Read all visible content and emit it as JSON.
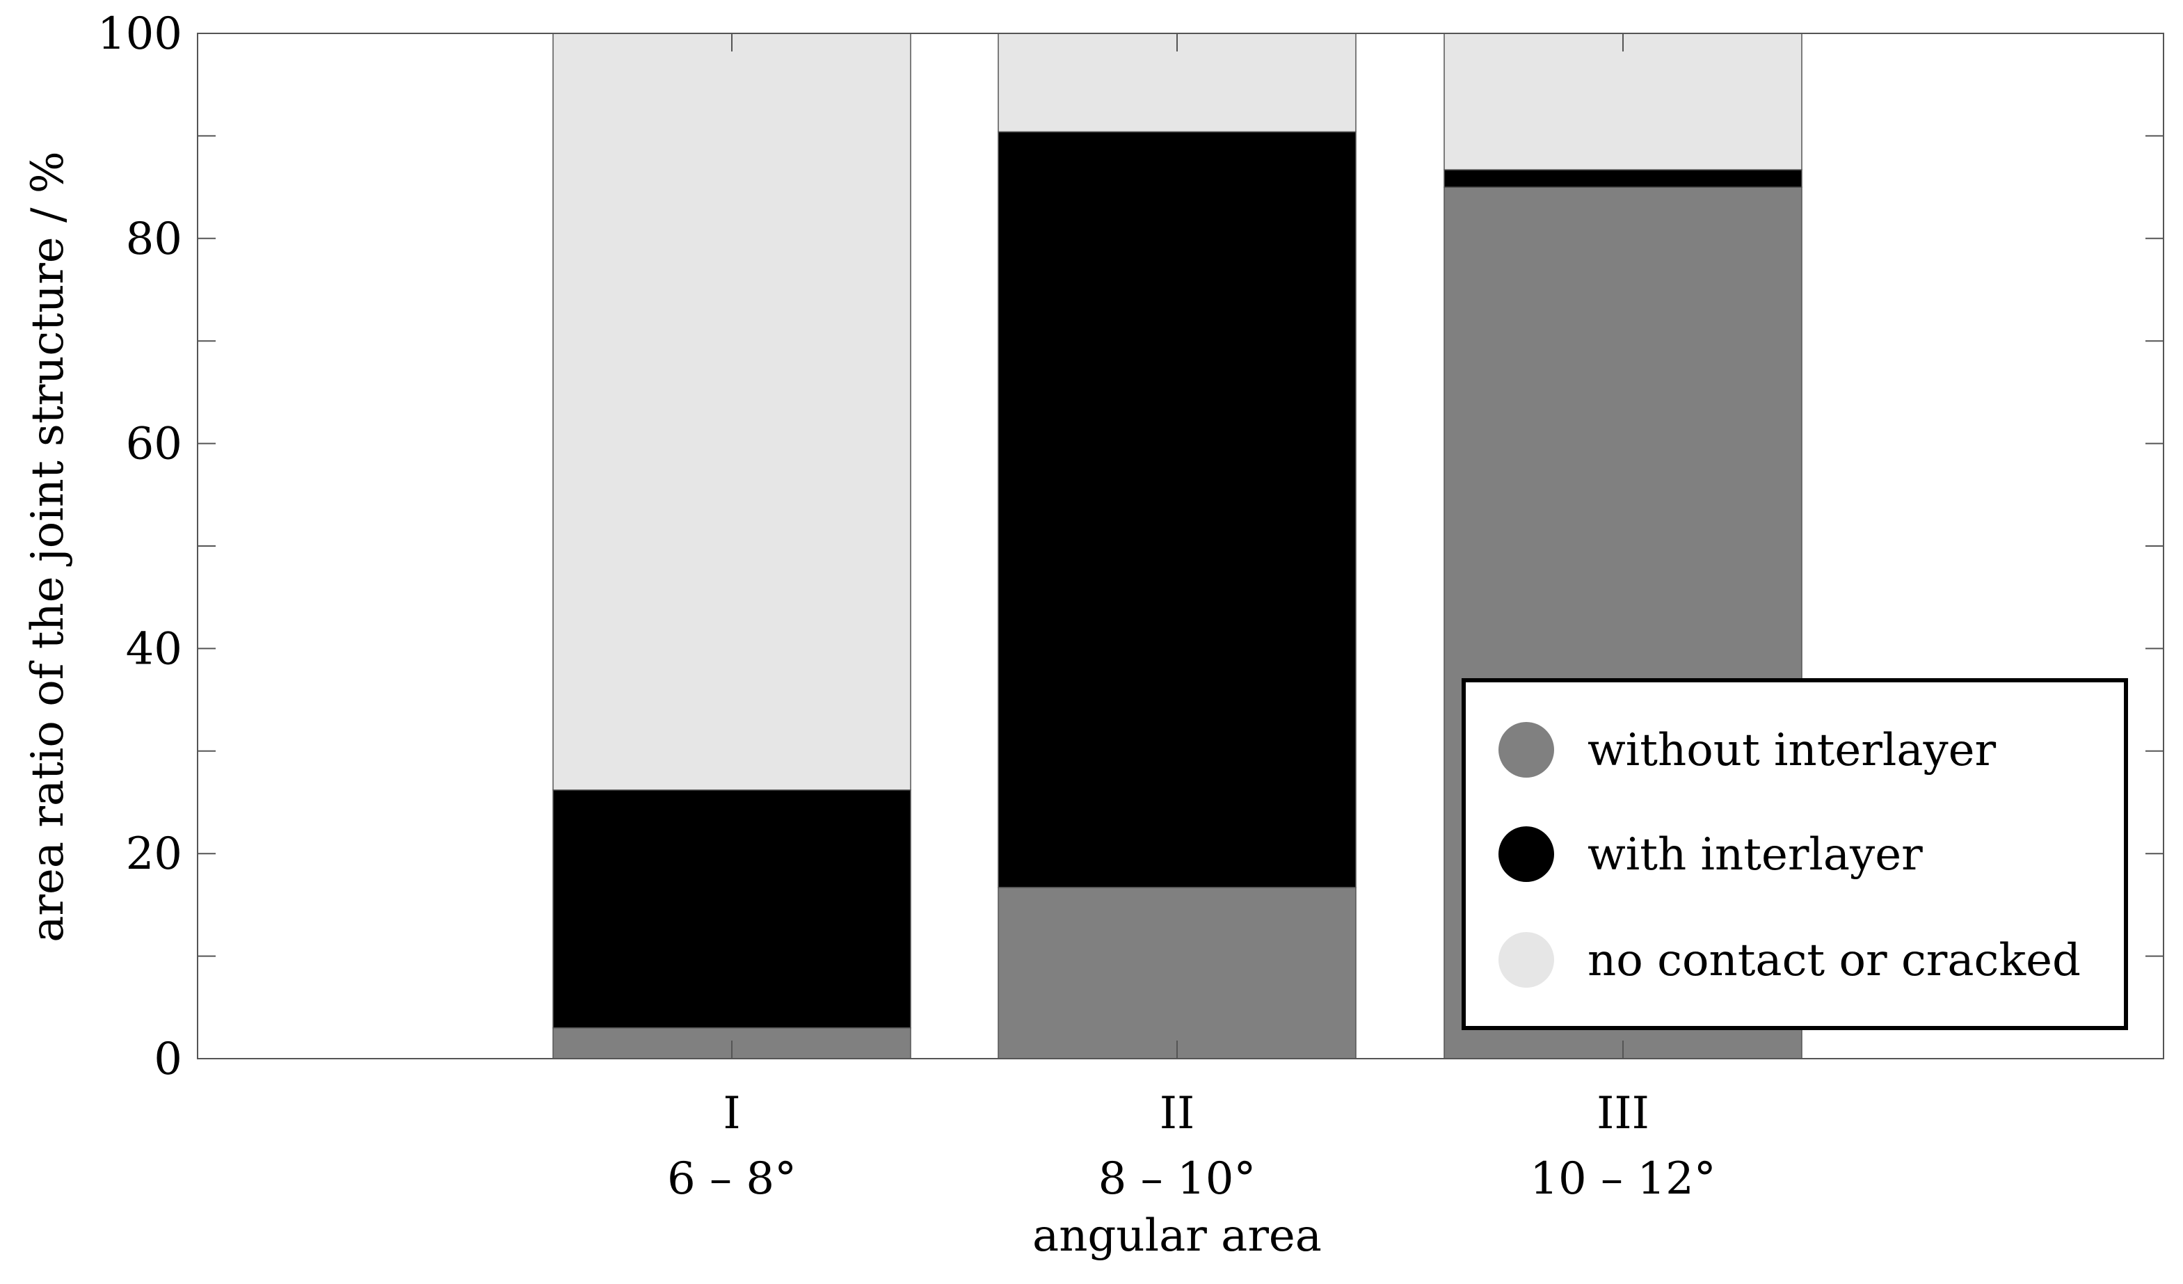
{
  "chart_data": {
    "type": "bar",
    "stacked": true,
    "categories": [
      [
        "I",
        "6 – 8°"
      ],
      [
        "II",
        "8 – 10°"
      ],
      [
        "III",
        "10 – 12°"
      ]
    ],
    "series": [
      {
        "name": "without interlayer",
        "values": [
          3,
          16.7,
          85
        ],
        "color": "#808080"
      },
      {
        "name": "with interlayer",
        "values": [
          23.2,
          73.7,
          1.7
        ],
        "color": "#000000"
      },
      {
        "name": "no contact or cracked",
        "values": [
          73.8,
          9.6,
          13.3
        ],
        "color": "#e6e6e6"
      }
    ],
    "xlabel": "angular area",
    "ylabel": "area ratio of the joint structure / %",
    "ylim": [
      0,
      100
    ],
    "yticks": [
      0,
      20,
      40,
      60,
      80,
      100
    ],
    "grid": false,
    "legend_position": "bottom-right"
  }
}
